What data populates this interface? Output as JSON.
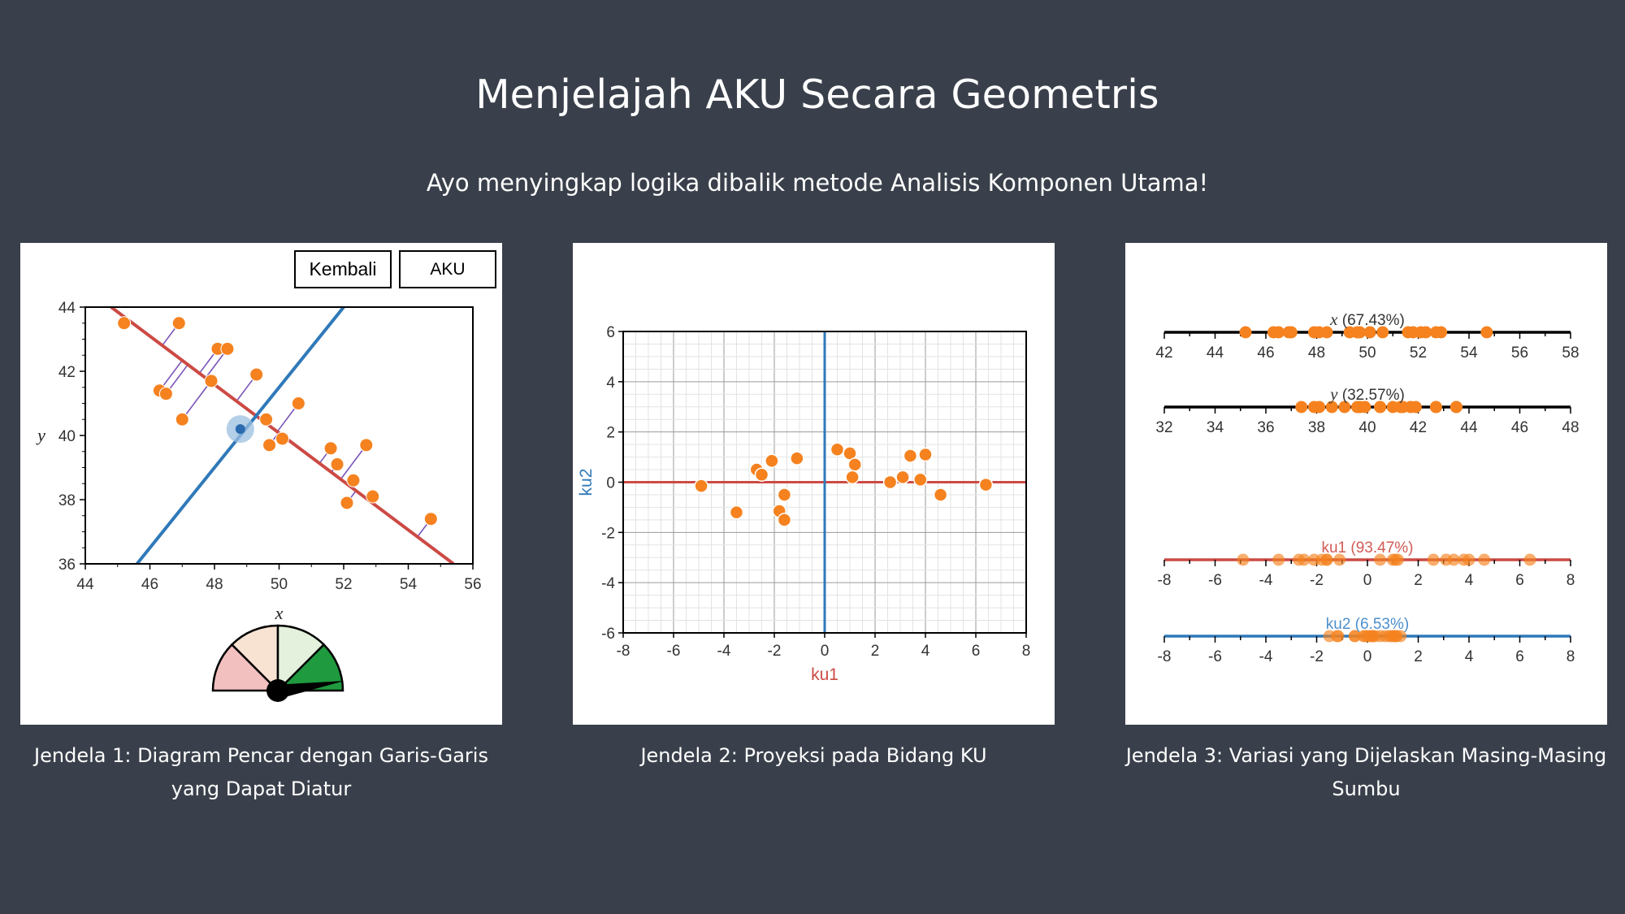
{
  "header": {
    "title": "Menjelajah AKU Secara Geometris",
    "subtitle": "Ayo menyingkap logika dibalik metode Analisis Komponen Utama!"
  },
  "panel1": {
    "buttons": {
      "back_label": "Kembali",
      "pca_label": "AKU"
    },
    "caption": "Jendela 1: Diagram Pencar dengan Garis-Garis yang Dapat Diatur",
    "gauge_icon": "gauge-icon",
    "gauge_level_segment": 4,
    "gauge_colors": [
      "#f3c0c0",
      "#f8e3d3",
      "#e4f1dc",
      "#1f9a3e"
    ]
  },
  "panel2": {
    "caption": "Jendela 2: Proyeksi pada Bidang KU"
  },
  "panel3": {
    "caption": "Jendela 3: Variasi yang Dijelaskan Masing-Masing Sumbu"
  },
  "colors": {
    "background": "#3a404b",
    "point": "#f5821f",
    "pc1_line": "#cc4a44",
    "pc2_line": "#2f79b9",
    "projection": "#7a55b8"
  },
  "chart_data": [
    {
      "type": "scatter",
      "title": "",
      "xlabel": "x",
      "ylabel": "y",
      "xlim": [
        44,
        56
      ],
      "ylim": [
        36,
        44
      ],
      "xticks": [
        "44",
        "46",
        "48",
        "50",
        "52",
        "54",
        "56"
      ],
      "yticks": [
        "36",
        "38",
        "40",
        "42",
        "44"
      ],
      "grid": false,
      "points": [
        [
          45.2,
          43.5
        ],
        [
          46.9,
          43.5
        ],
        [
          48.1,
          42.7
        ],
        [
          48.4,
          42.7
        ],
        [
          49.3,
          41.9
        ],
        [
          47.9,
          41.7
        ],
        [
          46.3,
          41.4
        ],
        [
          46.5,
          41.3
        ],
        [
          50.6,
          41.0
        ],
        [
          47.0,
          40.5
        ],
        [
          49.6,
          40.5
        ],
        [
          50.1,
          39.9
        ],
        [
          49.7,
          39.7
        ],
        [
          51.6,
          39.6
        ],
        [
          52.7,
          39.7
        ],
        [
          51.8,
          39.1
        ],
        [
          52.3,
          38.6
        ],
        [
          52.9,
          38.1
        ],
        [
          52.1,
          37.9
        ],
        [
          54.7,
          37.4
        ]
      ],
      "center": [
        48.8,
        40.2
      ],
      "pc1_line": [
        [
          44.8,
          44.0
        ],
        [
          55.4,
          36.0
        ]
      ],
      "pc2_line": [
        [
          45.6,
          36.0
        ],
        [
          52.0,
          44.0
        ]
      ]
    },
    {
      "type": "scatter",
      "title": "",
      "xlabel": "ku1",
      "ylabel": "ku2",
      "xlim": [
        -8,
        8
      ],
      "ylim": [
        -6,
        6
      ],
      "xticks": [
        "-8",
        "-6",
        "-4",
        "-2",
        "0",
        "2",
        "4",
        "6",
        "8"
      ],
      "yticks": [
        "-6",
        "-4",
        "-2",
        "0",
        "2",
        "4",
        "6"
      ],
      "grid": true,
      "points": [
        [
          -4.9,
          -0.15
        ],
        [
          -3.5,
          -1.2
        ],
        [
          -2.7,
          0.5
        ],
        [
          -2.5,
          0.3
        ],
        [
          -2.1,
          0.85
        ],
        [
          -1.8,
          -1.15
        ],
        [
          -1.6,
          -1.5
        ],
        [
          -1.6,
          -0.5
        ],
        [
          -1.1,
          0.95
        ],
        [
          0.5,
          1.3
        ],
        [
          1.0,
          1.15
        ],
        [
          1.2,
          0.7
        ],
        [
          1.1,
          0.2
        ],
        [
          2.6,
          0.0
        ],
        [
          3.1,
          0.2
        ],
        [
          3.4,
          1.05
        ],
        [
          3.8,
          0.1
        ],
        [
          4.0,
          1.1
        ],
        [
          4.6,
          -0.5
        ],
        [
          6.4,
          -0.1
        ]
      ]
    },
    {
      "type": "scatter",
      "title": "",
      "axes": [
        {
          "label": "x (67.43%)",
          "var": "x",
          "percent": "(67.43%)",
          "xlim": [
            42,
            58
          ],
          "ticks": [
            "42",
            "44",
            "46",
            "48",
            "50",
            "52",
            "54",
            "56",
            "58"
          ],
          "values": [
            45.2,
            46.3,
            46.5,
            46.9,
            47.0,
            47.9,
            48.1,
            48.4,
            49.3,
            49.6,
            49.7,
            50.1,
            50.6,
            51.6,
            51.8,
            52.1,
            52.3,
            52.7,
            52.9,
            54.7
          ]
        },
        {
          "label": "y (32.57%)",
          "var": "y",
          "percent": "(32.57%)",
          "xlim": [
            32,
            48
          ],
          "ticks": [
            "32",
            "34",
            "36",
            "38",
            "40",
            "42",
            "44",
            "46",
            "48"
          ],
          "values": [
            37.4,
            37.9,
            38.1,
            38.6,
            39.1,
            39.6,
            39.7,
            39.7,
            39.9,
            40.5,
            40.5,
            41.0,
            41.3,
            41.4,
            41.7,
            41.9,
            42.7,
            42.7,
            43.5,
            43.5
          ]
        },
        {
          "label": "ku1 (93.47%)",
          "xlim": [
            -8,
            8
          ],
          "ticks": [
            "-8",
            "-6",
            "-4",
            "-2",
            "0",
            "2",
            "4",
            "6",
            "8"
          ],
          "values": [
            -4.9,
            -3.5,
            -2.7,
            -2.5,
            -2.1,
            -1.8,
            -1.6,
            -1.6,
            -1.1,
            0.5,
            1.0,
            1.2,
            1.1,
            2.6,
            3.1,
            3.4,
            3.8,
            4.0,
            4.6,
            6.4
          ]
        },
        {
          "label": "ku2 (6.53%)",
          "xlim": [
            -8,
            8
          ],
          "ticks": [
            "-8",
            "-6",
            "-4",
            "-2",
            "0",
            "2",
            "4",
            "6",
            "8"
          ],
          "values": [
            -1.5,
            -1.2,
            -1.15,
            -0.5,
            -0.5,
            -0.15,
            -0.1,
            0.0,
            0.1,
            0.2,
            0.2,
            0.3,
            0.5,
            0.7,
            0.85,
            0.95,
            1.05,
            1.1,
            1.15,
            1.3
          ]
        }
      ]
    }
  ]
}
